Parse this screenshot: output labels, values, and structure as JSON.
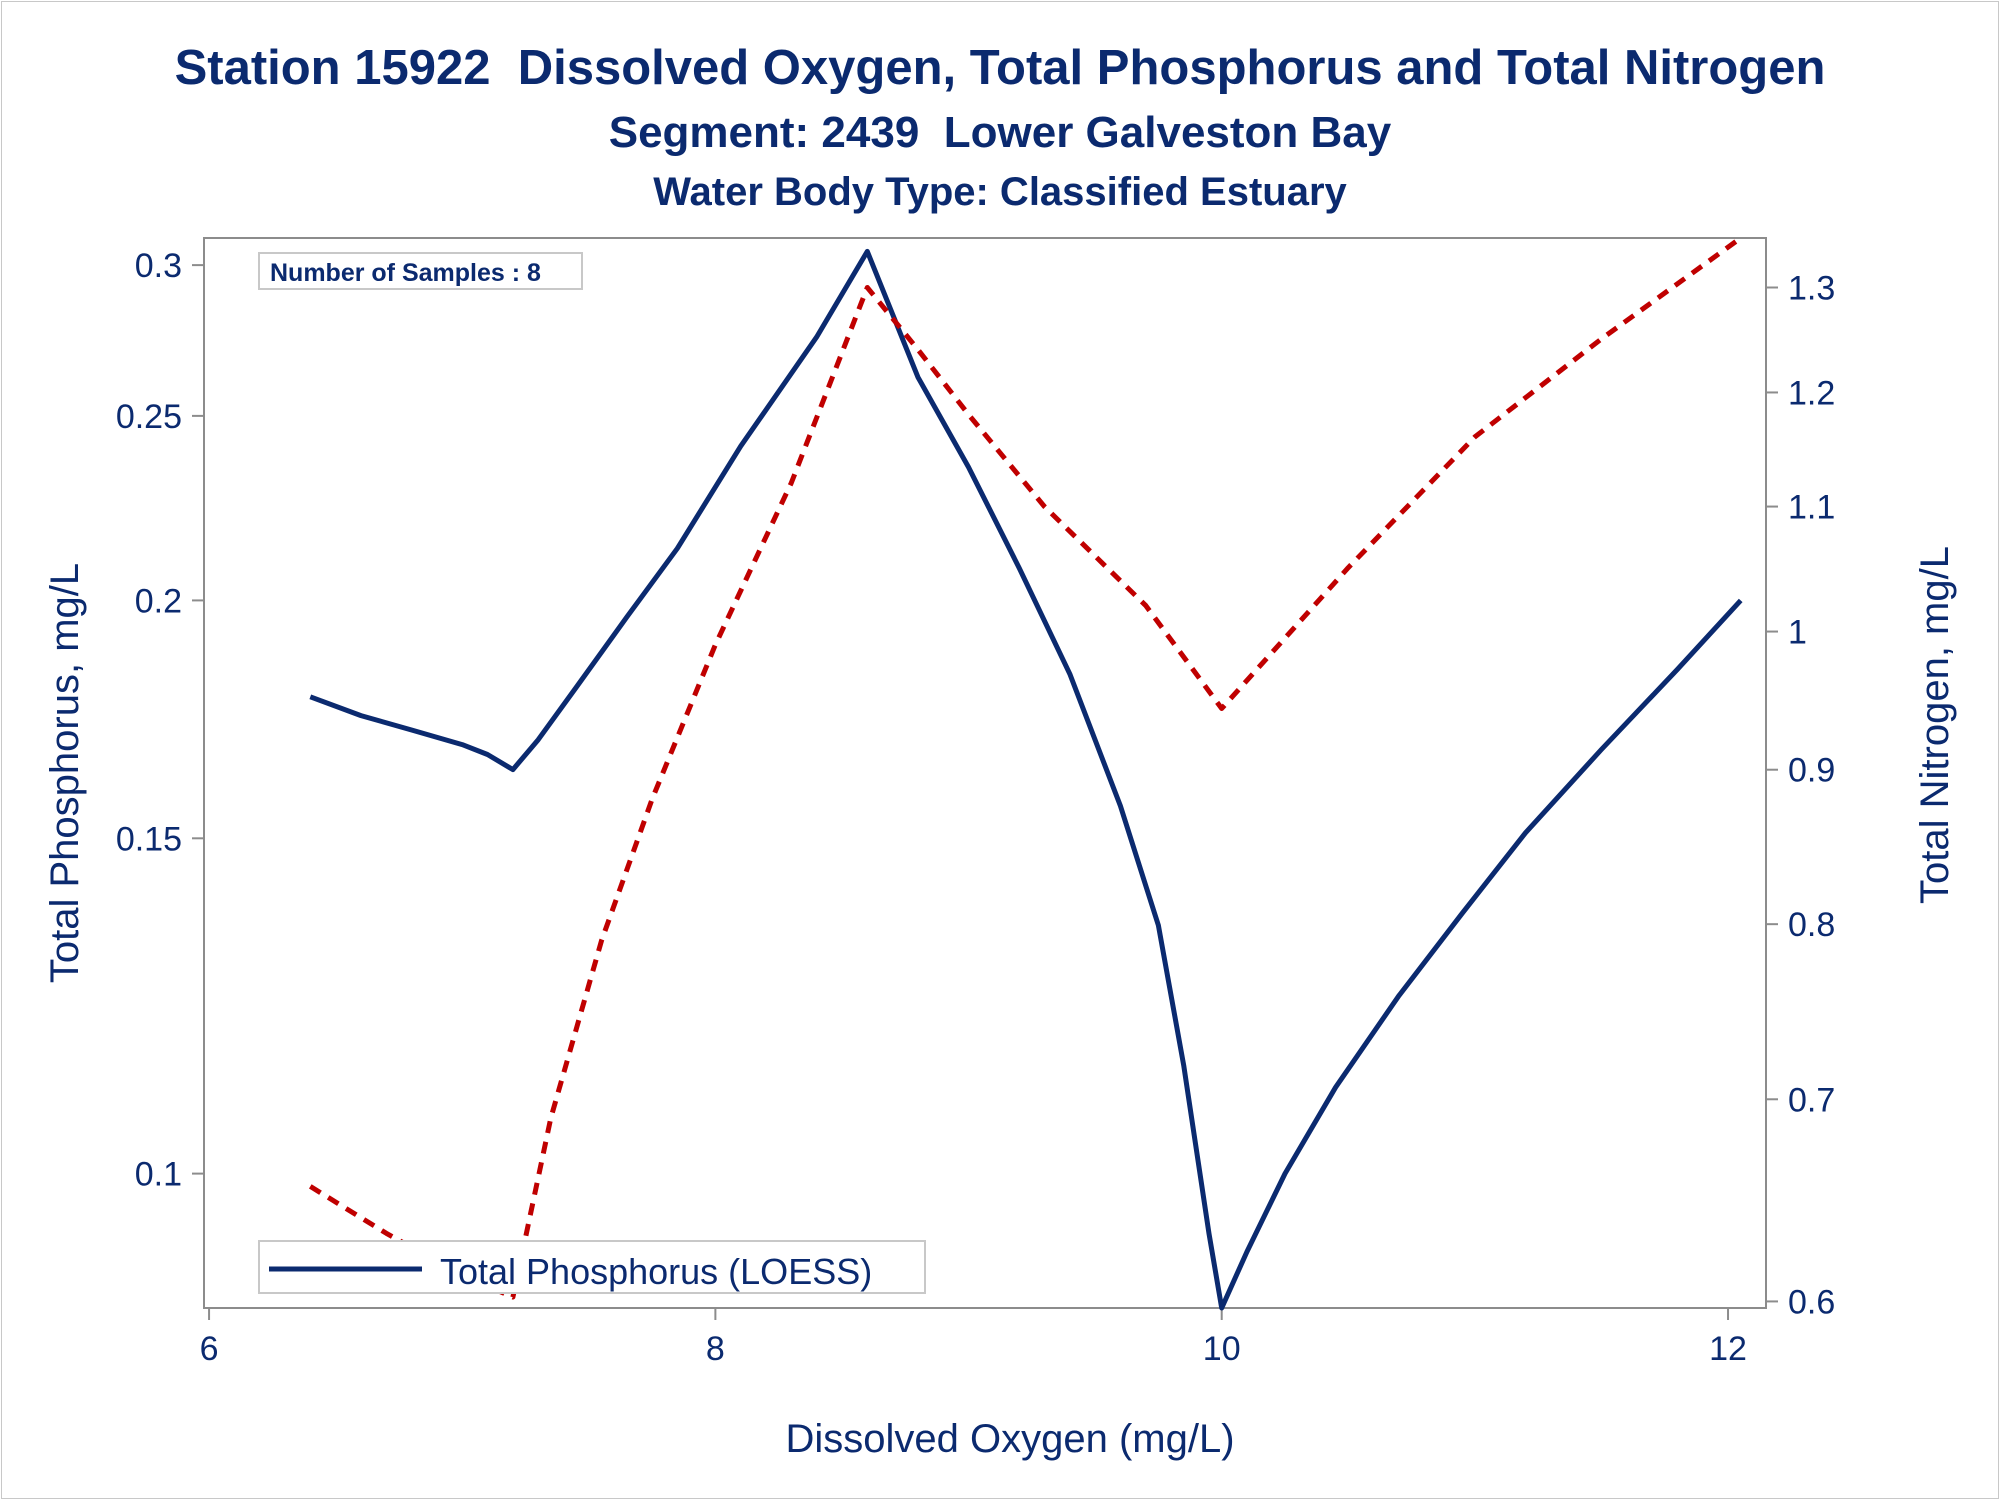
{
  "chart_data": {
    "type": "line",
    "title": "Station 15922  Dissolved Oxygen, Total Phosphorus and Total Nitrogen",
    "subtitle": "Segment: 2439  Lower Galveston Bay",
    "subtitle2": "Water Body Type: Classified Estuary",
    "xlabel": "Dissolved Oxygen (mg/L)",
    "ylabel": "Total Phosphorus, mg/L",
    "y2label": "Total Nitrogen, mg/L",
    "xlim": [
      5.98,
      12.15
    ],
    "ylim": [
      0.085,
      0.31
    ],
    "y2lim": [
      0.597,
      1.35
    ],
    "y_scale": "log",
    "y2_scale": "log",
    "x_ticks": [
      "6",
      "8",
      "10",
      "12"
    ],
    "y_ticks": [
      "0.1",
      "0.15",
      "0.2",
      "0.25",
      "0.3"
    ],
    "y2_ticks": [
      "0.6",
      "0.7",
      "0.8",
      "0.9",
      "1",
      "1.1",
      "1.2",
      "1.3"
    ],
    "annotation": "Number of Samples : 8",
    "legend_position": "bottom-left",
    "series": [
      {
        "name": "Total Phosphorus (LOESS)",
        "axis": "left",
        "color": "#0b2a6f",
        "style": "solid",
        "x": [
          6.4,
          6.6,
          6.8,
          7.0,
          7.1,
          7.2,
          7.3,
          7.45,
          7.65,
          7.85,
          8.1,
          8.4,
          8.6,
          8.8,
          9.0,
          9.2,
          9.4,
          9.6,
          9.75,
          9.85,
          9.95,
          10.0,
          10.1,
          10.25,
          10.45,
          10.7,
          10.95,
          11.2,
          11.5,
          11.8,
          12.05
        ],
        "values": [
          0.178,
          0.174,
          0.171,
          0.168,
          0.166,
          0.163,
          0.169,
          0.18,
          0.196,
          0.213,
          0.241,
          0.275,
          0.305,
          0.262,
          0.235,
          0.208,
          0.183,
          0.156,
          0.135,
          0.114,
          0.093,
          0.085,
          0.091,
          0.1,
          0.111,
          0.124,
          0.137,
          0.151,
          0.167,
          0.184,
          0.2
        ]
      },
      {
        "name": "",
        "axis": "right",
        "color": "#c00000",
        "style": "dashed",
        "x": [
          6.4,
          6.7,
          7.0,
          7.2,
          7.35,
          7.55,
          7.75,
          8.0,
          8.3,
          8.6,
          8.8,
          9.0,
          9.3,
          9.7,
          10.0,
          10.5,
          11.0,
          11.5,
          12.05
        ],
        "values": [
          0.655,
          0.632,
          0.612,
          0.602,
          0.69,
          0.79,
          0.88,
          0.99,
          1.12,
          1.3,
          1.24,
          1.18,
          1.1,
          1.02,
          0.943,
          1.05,
          1.16,
          1.25,
          1.35
        ]
      }
    ]
  }
}
